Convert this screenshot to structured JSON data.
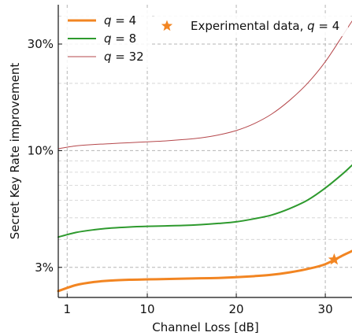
{
  "chart_data": {
    "type": "line",
    "xlabel": "Channel Loss [dB]",
    "ylabel": "Secret Key Rate improvement",
    "x_scale": "linear",
    "y_scale": "log",
    "xlim": [
      0,
      33
    ],
    "ylim": [
      2.2,
      45
    ],
    "x_ticks": [
      1,
      10,
      20,
      30
    ],
    "x_tick_labels": [
      "1",
      "10",
      "20",
      "30"
    ],
    "y_ticks": [
      3,
      10,
      30
    ],
    "y_tick_labels": [
      "3%",
      "10%",
      "30%"
    ],
    "grid": true,
    "legend_position": "top",
    "series": [
      {
        "name": "q = 4",
        "color": "#f28522",
        "x": [
          0,
          2,
          4,
          6,
          8,
          10,
          12,
          14,
          16,
          18,
          20,
          22,
          24,
          26,
          28,
          30,
          32,
          33
        ],
        "values": [
          2.35,
          2.5,
          2.58,
          2.62,
          2.64,
          2.65,
          2.66,
          2.67,
          2.68,
          2.69,
          2.71,
          2.74,
          2.78,
          2.85,
          2.95,
          3.1,
          3.4,
          3.55
        ]
      },
      {
        "name": "q = 8",
        "color": "#2e9a2e",
        "x": [
          0,
          2,
          4,
          6,
          8,
          10,
          12,
          14,
          16,
          18,
          20,
          22,
          24,
          26,
          28,
          30,
          32,
          33
        ],
        "values": [
          4.1,
          4.3,
          4.42,
          4.5,
          4.55,
          4.58,
          4.6,
          4.62,
          4.66,
          4.72,
          4.8,
          4.95,
          5.15,
          5.5,
          6.0,
          6.8,
          7.9,
          8.6
        ]
      },
      {
        "name": "q = 32",
        "color": "#b5474b",
        "x": [
          0,
          2,
          4,
          6,
          8,
          10,
          12,
          14,
          16,
          18,
          20,
          22,
          24,
          26,
          28,
          30,
          32,
          33
        ],
        "values": [
          10.2,
          10.5,
          10.65,
          10.75,
          10.85,
          10.95,
          11.05,
          11.2,
          11.4,
          11.75,
          12.3,
          13.2,
          14.6,
          16.8,
          20.0,
          25.0,
          33.0,
          38.0
        ]
      }
    ],
    "scatter": {
      "name": "Experimental data, q = 4",
      "color": "#f28522",
      "x": [
        31
      ],
      "values": [
        3.25
      ]
    }
  }
}
